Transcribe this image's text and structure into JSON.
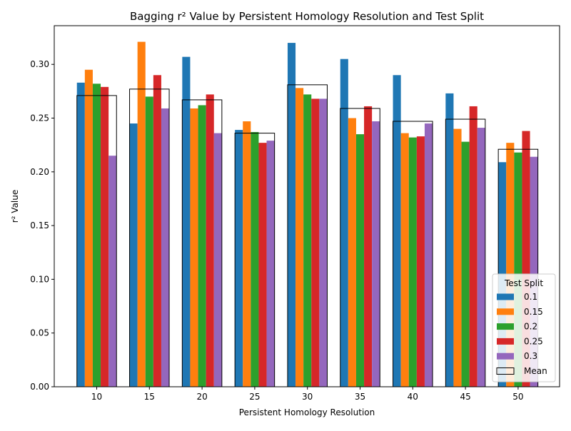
{
  "chart_data": {
    "type": "bar",
    "title": "Bagging r² Value by Persistent Homology Resolution and Test Split",
    "xlabel": "Persistent Homology Resolution",
    "ylabel": "r² Value",
    "categories": [
      "10",
      "15",
      "20",
      "25",
      "30",
      "35",
      "40",
      "45",
      "50"
    ],
    "ylim": [
      0,
      0.336
    ],
    "yticks": [
      "0.00",
      "0.05",
      "0.10",
      "0.15",
      "0.20",
      "0.25",
      "0.30"
    ],
    "legend": {
      "title": "Test Split",
      "position": "lower right"
    },
    "series": [
      {
        "name": "0.1",
        "color": "#1f77b4",
        "values": [
          0.283,
          0.245,
          0.307,
          0.239,
          0.32,
          0.305,
          0.29,
          0.273,
          0.209
        ]
      },
      {
        "name": "0.15",
        "color": "#ff7f0e",
        "values": [
          0.295,
          0.321,
          0.259,
          0.247,
          0.278,
          0.25,
          0.236,
          0.24,
          0.227
        ]
      },
      {
        "name": "0.2",
        "color": "#2ca02c",
        "values": [
          0.282,
          0.27,
          0.262,
          0.237,
          0.272,
          0.235,
          0.232,
          0.228,
          0.218
        ]
      },
      {
        "name": "0.25",
        "color": "#d62728",
        "values": [
          0.279,
          0.29,
          0.272,
          0.227,
          0.268,
          0.261,
          0.233,
          0.261,
          0.238
        ]
      },
      {
        "name": "0.3",
        "color": "#9467bd",
        "values": [
          0.215,
          0.259,
          0.236,
          0.229,
          0.268,
          0.247,
          0.245,
          0.241,
          0.214
        ]
      }
    ],
    "mean": {
      "name": "Mean",
      "values": [
        0.271,
        0.277,
        0.267,
        0.236,
        0.281,
        0.259,
        0.247,
        0.249,
        0.221
      ]
    },
    "grid": false
  }
}
